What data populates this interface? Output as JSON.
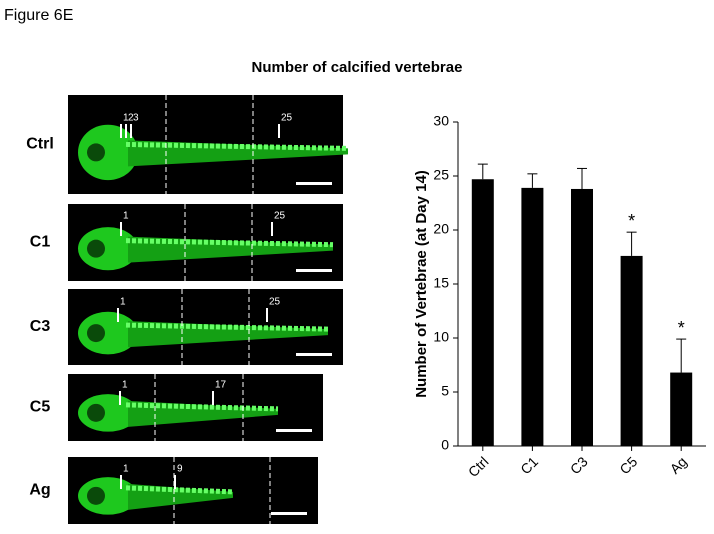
{
  "figure_label": "Figure 6E",
  "panels": [
    {
      "label": "Ctrl",
      "annotations": [
        "1",
        "2",
        "3",
        "25"
      ]
    },
    {
      "label": "C1",
      "annotations": [
        "1",
        "25"
      ]
    },
    {
      "label": "C3",
      "annotations": [
        "1",
        "25"
      ]
    },
    {
      "label": "C5",
      "annotations": [
        "1",
        "17"
      ]
    },
    {
      "label": "Ag",
      "annotations": [
        "1",
        "9"
      ]
    }
  ],
  "chart_data": {
    "type": "bar",
    "title": "Number of calcified vertebrae",
    "y_label": "Number of Vertebrae (at Day 14)",
    "categories": [
      "Ctrl",
      "C1",
      "C3",
      "C5",
      "Ag"
    ],
    "values": [
      24.7,
      23.9,
      23.8,
      17.6,
      6.8
    ],
    "errors": [
      1.4,
      1.3,
      1.9,
      2.2,
      3.1
    ],
    "significance": [
      null,
      null,
      null,
      "*",
      "*"
    ],
    "color": "#000000",
    "ylim": [
      0,
      30
    ],
    "yticks": [
      0,
      5,
      10,
      15,
      20,
      25,
      30
    ]
  }
}
